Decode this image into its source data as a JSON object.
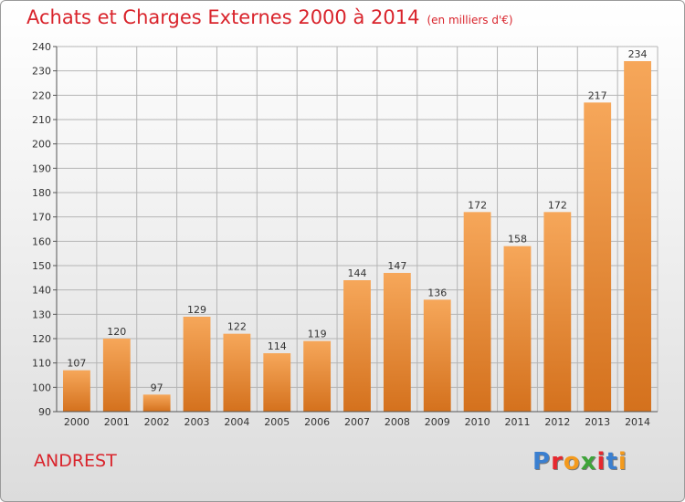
{
  "title": "Achats et Charges Externes 2000 à 2014",
  "subtitle": "(en milliers d'€)",
  "town": "ANDREST",
  "logo": {
    "letters": [
      "P",
      "r",
      "o",
      "x",
      "i",
      "t",
      "i"
    ],
    "colors": [
      "#3a7fd0",
      "#e6282f",
      "#f39a1d",
      "#3fa43a",
      "#e6282f",
      "#3a7fd0",
      "#f39a1d"
    ]
  },
  "colors": {
    "bar_top": "#f6a75a",
    "bar_bottom": "#d4711d",
    "grid": "#b5b5b5",
    "title": "#d9242c"
  },
  "chart_data": {
    "type": "bar",
    "categories": [
      "2000",
      "2001",
      "2002",
      "2003",
      "2004",
      "2005",
      "2006",
      "2007",
      "2008",
      "2009",
      "2010",
      "2011",
      "2012",
      "2013",
      "2014"
    ],
    "values": [
      107,
      120,
      97,
      129,
      122,
      114,
      119,
      144,
      147,
      136,
      172,
      158,
      172,
      217,
      234
    ],
    "ylim": [
      90,
      240
    ],
    "yticks": [
      90,
      100,
      110,
      120,
      130,
      140,
      150,
      160,
      170,
      180,
      190,
      200,
      210,
      220,
      230,
      240
    ],
    "grid": true,
    "title": "Achats et Charges Externes 2000 à 2014",
    "xlabel": "",
    "ylabel": ""
  }
}
